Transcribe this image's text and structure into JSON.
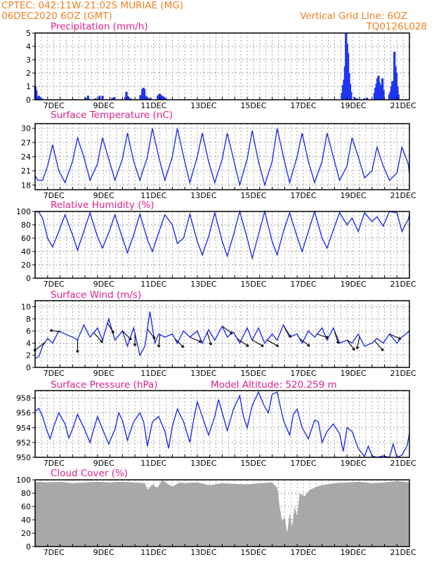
{
  "header": {
    "line1": "CPTEC:    042:11W-21:02S    MURIAE (MG)",
    "line2": "06DEC2020 6OZ (GMT)",
    "grid_note": "Vertical Grid Line: 6OZ",
    "code": "TQ0126L028"
  },
  "colors": {
    "series": "#2030e8",
    "bars": "#1f35f0",
    "cloud": "#a8a8a8",
    "header": "#f08020",
    "titles": "#e0208a"
  },
  "chart_data": [
    {
      "type": "bar",
      "title": "Precipitation (mm/h)",
      "ylim": [
        0,
        5
      ],
      "yticks": [
        "0",
        "1",
        "2",
        "3",
        "4",
        "5"
      ],
      "xticks": [
        "7DEC",
        "9DEC",
        "11DEC",
        "13DEC",
        "15DEC",
        "17DEC",
        "19DEC",
        "21DEC"
      ],
      "x_unit": "day offset from 06DEC 06Z",
      "x": [
        0.01,
        0.05,
        0.09,
        0.15,
        0.2,
        0.28,
        2.02,
        2.12,
        2.42,
        2.58,
        2.7,
        3.1,
        3.18,
        3.62,
        3.66,
        3.7,
        3.74,
        3.82,
        4.22,
        4.26,
        4.3,
        4.34,
        4.38,
        4.42,
        4.46,
        4.5,
        4.54,
        4.58,
        4.62,
        4.92,
        4.96,
        5.0,
        5.04,
        5.08,
        5.12,
        5.16,
        5.2,
        5.24,
        12.3,
        12.34,
        12.38,
        12.42,
        12.46,
        12.5,
        12.54,
        12.58,
        12.62,
        12.66,
        12.8,
        12.9,
        13.2,
        13.3,
        13.6,
        13.64,
        13.68,
        13.72,
        13.76,
        13.8,
        13.84,
        13.88,
        13.92,
        13.96,
        14.2,
        14.24,
        14.28,
        14.32,
        14.36,
        14.4,
        14.44,
        14.48,
        14.52,
        14.56
      ],
      "values": [
        1.0,
        0.7,
        0.2,
        0.3,
        0.2,
        0.1,
        0.15,
        0.3,
        0.1,
        0.3,
        0.3,
        0.15,
        0.2,
        0.2,
        0.6,
        0.3,
        0.2,
        0.1,
        0.35,
        0.2,
        0.8,
        0.9,
        0.8,
        0.3,
        0.2,
        0.1,
        0.05,
        0.1,
        0.15,
        0.3,
        0.4,
        0.45,
        0.35,
        0.3,
        0.25,
        0.2,
        0.15,
        0.1,
        0.5,
        1.1,
        1.5,
        2.5,
        5.0,
        4.2,
        3.5,
        2.0,
        1.2,
        0.6,
        0.2,
        0.1,
        0.1,
        0.15,
        0.5,
        0.9,
        1.2,
        1.6,
        1.8,
        1.3,
        1.1,
        0.8,
        1.6,
        0.7,
        0.4,
        0.6,
        1.0,
        1.4,
        1.1,
        3.6,
        2.5,
        2.0,
        1.0,
        0.4
      ]
    },
    {
      "type": "line",
      "title": "Surface Temperature (nC)",
      "ylim": [
        17,
        31
      ],
      "yticks": [
        "18",
        "21",
        "24",
        "27",
        "30"
      ],
      "xticks": [
        "7DEC",
        "9DEC",
        "11DEC",
        "13DEC",
        "15DEC",
        "17DEC",
        "19DEC",
        "21DEC"
      ],
      "x_unit": "day offset from 06DEC 06Z",
      "x": [
        0,
        0.1,
        0.3,
        0.5,
        0.7,
        0.95,
        1.2,
        1.5,
        1.7,
        1.95,
        2.2,
        2.5,
        2.7,
        2.95,
        3.2,
        3.5,
        3.7,
        3.95,
        4.2,
        4.5,
        4.7,
        4.95,
        5.2,
        5.5,
        5.7,
        5.95,
        6.2,
        6.5,
        6.7,
        6.95,
        7.2,
        7.5,
        7.7,
        7.95,
        8.2,
        8.5,
        8.7,
        8.95,
        9.2,
        9.5,
        9.7,
        9.95,
        10.2,
        10.5,
        10.7,
        10.95,
        11.2,
        11.5,
        11.7,
        11.95,
        12.2,
        12.5,
        12.7,
        12.95,
        13.2,
        13.5,
        13.7,
        13.95,
        14.2,
        14.5,
        14.7,
        14.95,
        15.0
      ],
      "values": [
        20,
        19,
        19,
        22,
        26.5,
        21,
        18.5,
        23,
        28,
        24,
        19,
        22.5,
        28,
        23.5,
        19,
        23.5,
        29,
        23,
        19,
        24,
        30,
        24,
        19,
        24,
        30,
        24,
        18.5,
        24,
        29,
        23,
        18.5,
        23.5,
        29,
        23.5,
        18,
        23.5,
        29.5,
        23,
        18,
        23,
        30,
        24,
        18.5,
        24,
        29,
        23,
        18.5,
        23,
        29,
        24,
        19,
        22,
        28,
        24,
        19.5,
        21,
        26,
        22,
        19,
        20.5,
        26,
        22.5,
        20.5
      ]
    },
    {
      "type": "line",
      "title": "Relative Humidity (%)",
      "ylim": [
        0,
        100
      ],
      "yticks": [
        "0",
        "20",
        "40",
        "60",
        "80",
        "100"
      ],
      "xticks": [
        "7DEC",
        "9DEC",
        "11DEC",
        "13DEC",
        "15DEC",
        "17DEC",
        "19DEC",
        "21DEC"
      ],
      "x_unit": "day offset from 06DEC 06Z",
      "x": [
        0,
        0.15,
        0.3,
        0.5,
        0.7,
        0.95,
        1.2,
        1.5,
        1.7,
        1.95,
        2.2,
        2.5,
        2.7,
        2.95,
        3.2,
        3.5,
        3.7,
        3.95,
        4.2,
        4.5,
        4.7,
        4.95,
        5.2,
        5.5,
        5.7,
        5.95,
        6.2,
        6.5,
        6.7,
        6.95,
        7.2,
        7.5,
        7.7,
        7.95,
        8.2,
        8.5,
        8.7,
        8.95,
        9.2,
        9.5,
        9.7,
        9.95,
        10.2,
        10.5,
        10.7,
        10.95,
        11.2,
        11.5,
        11.7,
        11.95,
        12.2,
        12.5,
        12.7,
        12.95,
        13.2,
        13.5,
        13.7,
        13.95,
        14.2,
        14.5,
        14.7,
        14.95,
        15.0
      ],
      "values": [
        100,
        99,
        90,
        60,
        47,
        70,
        95,
        65,
        42,
        70,
        98,
        62,
        45,
        68,
        95,
        60,
        38,
        65,
        96,
        58,
        40,
        68,
        95,
        80,
        52,
        60,
        96,
        55,
        35,
        62,
        98,
        55,
        33,
        65,
        100,
        60,
        30,
        65,
        100,
        55,
        35,
        70,
        98,
        62,
        40,
        70,
        100,
        60,
        45,
        72,
        98,
        80,
        90,
        70,
        98,
        85,
        92,
        78,
        100,
        98,
        70,
        88,
        95
      ]
    },
    {
      "type": "line",
      "title": "Surface Wind (m/s)",
      "ylim": [
        0,
        11
      ],
      "yticks": [
        "0",
        "2",
        "4",
        "6",
        "8",
        "10"
      ],
      "xticks": [
        "7DEC",
        "9DEC",
        "11DEC",
        "13DEC",
        "15DEC",
        "17DEC",
        "19DEC",
        "21DEC"
      ],
      "x_unit": "day offset from 06DEC 06Z",
      "x": [
        0,
        0.15,
        0.3,
        0.5,
        0.7,
        0.95,
        1.2,
        1.5,
        1.7,
        1.95,
        2.2,
        2.5,
        2.7,
        2.95,
        3.2,
        3.5,
        3.7,
        3.95,
        4.2,
        4.4,
        4.6,
        4.8,
        4.95,
        5.2,
        5.5,
        5.7,
        5.95,
        6.2,
        6.5,
        6.7,
        6.95,
        7.2,
        7.5,
        7.7,
        7.95,
        8.2,
        8.5,
        8.7,
        8.95,
        9.2,
        9.5,
        9.7,
        9.95,
        10.2,
        10.5,
        10.7,
        10.95,
        11.2,
        11.5,
        11.7,
        11.95,
        12.2,
        12.5,
        12.7,
        12.95,
        13.2,
        13.5,
        13.7,
        13.95,
        14.2,
        14.5,
        14.7,
        15.0
      ],
      "values": [
        1.5,
        1.8,
        3.5,
        4.8,
        4.0,
        6.0,
        5.5,
        5.0,
        4.5,
        7.0,
        5.0,
        6.5,
        4.5,
        8.0,
        4.5,
        6.0,
        3.5,
        6.5,
        2.0,
        3.5,
        9.2,
        4.0,
        5.5,
        5.0,
        5.5,
        4.0,
        6.0,
        5.0,
        6.0,
        4.0,
        6.2,
        4.5,
        6.8,
        5.0,
        5.8,
        4.0,
        6.5,
        4.5,
        6.5,
        4.0,
        5.5,
        4.5,
        7.0,
        5.0,
        5.5,
        4.0,
        6.0,
        5.0,
        6.5,
        4.5,
        6.5,
        4.0,
        4.5,
        4.0,
        5.5,
        3.5,
        4.0,
        4.8,
        4.0,
        5.5,
        4.0,
        5.0,
        6.0
      ],
      "wind_arrows": [
        {
          "x": 0.4,
          "u": -0.9,
          "v": -0.7
        },
        {
          "x": 1.0,
          "u": -0.8,
          "v": 0.1
        },
        {
          "x": 1.7,
          "u": 0.0,
          "v": -1.0
        },
        {
          "x": 2.35,
          "u": 0.7,
          "v": -0.8
        },
        {
          "x": 2.9,
          "u": 0.5,
          "v": -0.8
        },
        {
          "x": 3.5,
          "u": 0.7,
          "v": -0.7
        },
        {
          "x": 4.0,
          "u": 0.0,
          "v": -1.0
        },
        {
          "x": 4.5,
          "u": 0.6,
          "v": -0.8
        },
        {
          "x": 5.0,
          "u": -0.1,
          "v": -1.0
        },
        {
          "x": 5.6,
          "u": 0.7,
          "v": -0.7
        },
        {
          "x": 6.2,
          "u": 0.9,
          "v": -0.4
        },
        {
          "x": 6.9,
          "u": 0.3,
          "v": -1.0
        },
        {
          "x": 7.5,
          "u": 0.8,
          "v": -0.6
        },
        {
          "x": 8.1,
          "u": 0.9,
          "v": -0.6
        },
        {
          "x": 8.7,
          "u": 0.9,
          "v": -0.5
        },
        {
          "x": 9.3,
          "u": 0.9,
          "v": -0.5
        },
        {
          "x": 10.0,
          "u": 0.5,
          "v": -0.8
        },
        {
          "x": 10.6,
          "u": 0.8,
          "v": -0.6
        },
        {
          "x": 11.3,
          "u": 0.9,
          "v": -0.3
        },
        {
          "x": 12.0,
          "u": 0.3,
          "v": -1.0
        },
        {
          "x": 12.5,
          "u": 0.6,
          "v": -0.8
        },
        {
          "x": 13.0,
          "u": -0.2,
          "v": -1.0
        },
        {
          "x": 13.6,
          "u": 0.7,
          "v": -0.8
        },
        {
          "x": 14.2,
          "u": 0.9,
          "v": -0.4
        }
      ]
    },
    {
      "type": "line",
      "title": "Surface Pressure (hPa)",
      "annotation": "Model Altitude: 520.259 m",
      "ylim": [
        950,
        959
      ],
      "yticks": [
        "950",
        "952",
        "954",
        "956",
        "958"
      ],
      "xticks": [
        "7DEC",
        "9DEC",
        "11DEC",
        "13DEC",
        "15DEC",
        "17DEC",
        "19DEC",
        "21DEC"
      ],
      "x_unit": "day offset from 06DEC 06Z",
      "x": [
        0,
        0.15,
        0.3,
        0.45,
        0.6,
        0.75,
        0.95,
        1.2,
        1.35,
        1.5,
        1.7,
        1.95,
        2.2,
        2.35,
        2.5,
        2.7,
        2.95,
        3.2,
        3.35,
        3.5,
        3.7,
        3.95,
        4.2,
        4.35,
        4.5,
        4.7,
        4.95,
        5.2,
        5.35,
        5.5,
        5.7,
        5.95,
        6.2,
        6.35,
        6.5,
        6.7,
        6.95,
        7.2,
        7.35,
        7.5,
        7.7,
        7.95,
        8.2,
        8.35,
        8.5,
        8.7,
        8.95,
        9.2,
        9.35,
        9.5,
        9.7,
        9.95,
        10.2,
        10.35,
        10.5,
        10.7,
        10.95,
        11.2,
        11.35,
        11.5,
        11.7,
        11.95,
        12.2,
        12.35,
        12.5,
        12.7,
        12.95,
        13.2,
        13.35,
        13.5,
        13.7,
        13.95,
        14.2,
        14.35,
        14.5,
        14.7,
        14.9,
        15.0
      ],
      "values": [
        956.2,
        956.6,
        955.5,
        953.8,
        952.5,
        954.2,
        956.0,
        954.5,
        952.6,
        953.8,
        955.8,
        954.0,
        952.0,
        953.8,
        955.5,
        953.8,
        951.8,
        953.8,
        956.0,
        955.0,
        952.3,
        954.8,
        956.0,
        954.8,
        951.5,
        954.8,
        955.5,
        953.5,
        951.2,
        954.2,
        956.5,
        954.8,
        952.0,
        955.0,
        957.5,
        955.5,
        953.0,
        955.5,
        957.8,
        956.0,
        953.6,
        956.5,
        958.3,
        955.5,
        954.0,
        957.0,
        958.8,
        956.8,
        956.0,
        958.5,
        958.8,
        955.0,
        953.0,
        955.8,
        956.5,
        954.0,
        952.5,
        955.0,
        954.8,
        952.0,
        953.5,
        954.5,
        953.2,
        950.8,
        954.0,
        953.5,
        951.2,
        950.1,
        951.5,
        950.2,
        950.0,
        950.2,
        950.0,
        951.8,
        950.0,
        950.3,
        951.5,
        953.2
      ]
    },
    {
      "type": "area",
      "title": "Cloud Cover (%)",
      "ylim": [
        0,
        100
      ],
      "yticks": [
        "0",
        "20",
        "40",
        "60",
        "80",
        "100"
      ],
      "xticks": [
        "7DEC",
        "9DEC",
        "11DEC",
        "13DEC",
        "15DEC",
        "17DEC",
        "19DEC",
        "21DEC"
      ],
      "x_unit": "day offset from 06DEC 06Z",
      "x": [
        0,
        0.5,
        1.0,
        1.5,
        2.0,
        2.5,
        3.0,
        3.5,
        4.0,
        4.4,
        4.5,
        4.7,
        4.9,
        5.1,
        5.3,
        5.5,
        5.8,
        6.0,
        6.5,
        7.0,
        7.5,
        8.0,
        8.5,
        9.0,
        9.5,
        9.7,
        9.8,
        9.9,
        10.0,
        10.1,
        10.2,
        10.3,
        10.4,
        10.5,
        10.6,
        10.8,
        11.0,
        11.3,
        11.5,
        12.0,
        12.5,
        13.0,
        13.5,
        14.0,
        14.5,
        15.0
      ],
      "values": [
        97,
        96,
        97,
        95,
        96,
        97,
        96,
        97,
        96,
        95,
        85,
        93,
        88,
        100,
        94,
        90,
        96,
        95,
        96,
        92,
        95,
        94,
        93,
        95,
        96,
        88,
        60,
        38,
        45,
        20,
        50,
        30,
        60,
        45,
        80,
        75,
        85,
        90,
        92,
        95,
        96,
        97,
        95,
        96,
        98,
        96
      ]
    }
  ]
}
